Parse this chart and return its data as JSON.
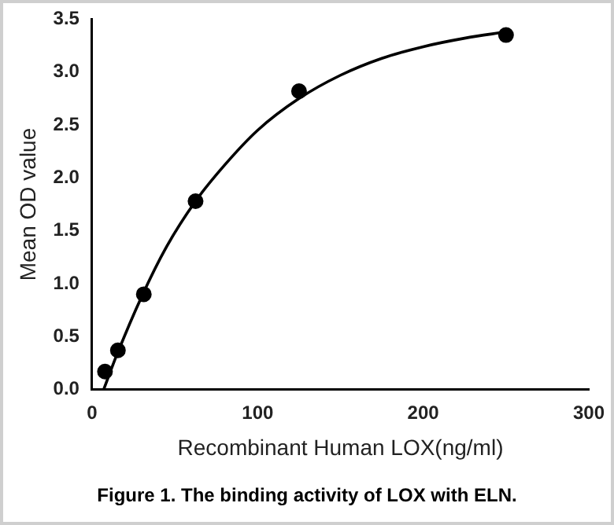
{
  "chart_data": {
    "type": "scatter",
    "xlabel": "Recombinant Human LOX(ng/ml)",
    "ylabel": "Mean OD value",
    "annotations": [
      "Figure 1. The binding activity of LOX with ELN."
    ],
    "series": [
      {
        "type": "scatter",
        "color": "#000000",
        "marker": "circle",
        "x": [
          7.8,
          15.6,
          31.25,
          62.5,
          125,
          250
        ],
        "values": [
          0.17,
          0.37,
          0.9,
          1.78,
          2.82,
          3.35
        ]
      },
      {
        "type": "line",
        "color": "#000000",
        "marker": "none",
        "x": [
          7,
          15,
          30,
          45,
          62.5,
          80,
          100,
          125,
          150,
          175,
          200,
          225,
          250
        ],
        "values": [
          0,
          0.33,
          0.88,
          1.35,
          1.78,
          2.12,
          2.45,
          2.75,
          2.97,
          3.13,
          3.24,
          3.32,
          3.38
        ]
      }
    ],
    "xlim": [
      0,
      300
    ],
    "xticks": [
      0,
      100,
      200,
      300
    ],
    "ylim": [
      0,
      3.5
    ],
    "yticks": [
      "0.0",
      0.5,
      "1.0",
      1.5,
      "2.0",
      2.5,
      "3.0",
      3.5
    ],
    "grid": false,
    "legend": false
  }
}
